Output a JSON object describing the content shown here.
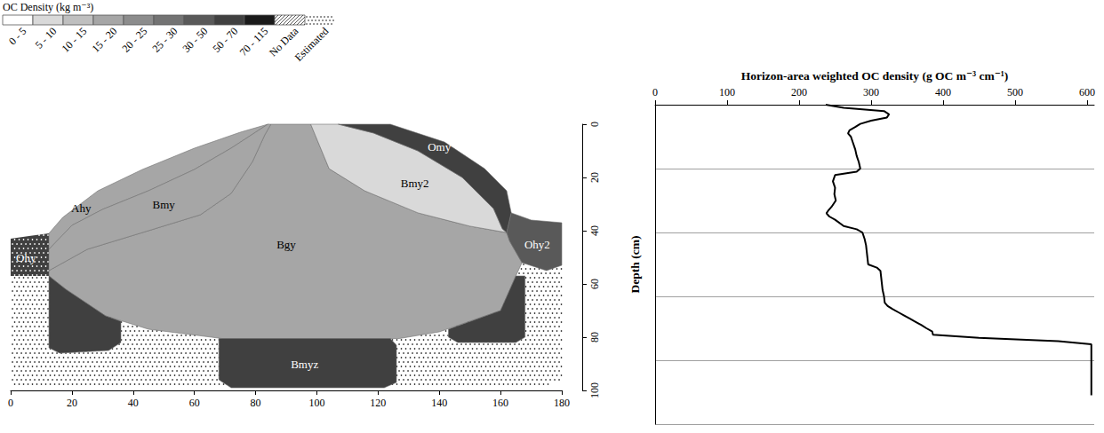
{
  "chart_data": {
    "type": "line",
    "x_title": "Horizon-area weighted OC density (g OC m⁻³ cm⁻¹)",
    "y_title": "Depth (cm)",
    "x": [
      237,
      262,
      318,
      325,
      322,
      300,
      285,
      278,
      270,
      268,
      272,
      275,
      278,
      280,
      283,
      285,
      280,
      250,
      247,
      250,
      249,
      251,
      245,
      241,
      238,
      242,
      250,
      262,
      280,
      288,
      291,
      293,
      294,
      295,
      296,
      308,
      313,
      314,
      315,
      316,
      318,
      319,
      323,
      330,
      338,
      346,
      354,
      362,
      370,
      377,
      385,
      386,
      450,
      560,
      606,
      606
    ],
    "y": [
      0,
      1,
      2,
      3,
      4,
      5,
      6,
      7,
      8,
      9,
      10,
      12,
      14,
      16,
      18,
      20,
      21,
      22,
      24,
      26,
      28,
      30,
      32,
      33,
      34,
      35,
      36,
      38,
      39,
      40,
      42,
      44,
      46,
      48,
      50,
      51,
      52,
      54,
      56,
      58,
      60,
      62,
      63,
      64,
      65,
      66,
      67,
      68,
      69,
      70,
      71,
      72,
      73,
      74,
      75,
      91
    ],
    "color": "#000000",
    "marker": "none",
    "line_style": "solid",
    "xlim": [
      0,
      610
    ],
    "xticks": [
      0,
      100,
      200,
      300,
      400,
      500,
      600
    ],
    "ylim": [
      0,
      100
    ],
    "yticks": [
      0,
      20,
      40,
      60,
      80,
      100
    ],
    "grid": true,
    "tick_labels": "x"
  },
  "profile": {
    "legend_title": "OC Density (kg m⁻³)",
    "classes": [
      {
        "label": "0 - 5",
        "color": "#ffffff"
      },
      {
        "label": "5 - 10",
        "color": "#d9d9d9"
      },
      {
        "label": "10 - 15",
        "color": "#bfbfbf"
      },
      {
        "label": "15 - 20",
        "color": "#a6a6a6"
      },
      {
        "label": "20 - 25",
        "color": "#8c8c8c"
      },
      {
        "label": "25 - 30",
        "color": "#737373"
      },
      {
        "label": "30 - 50",
        "color": "#595959"
      },
      {
        "label": "50 - 70",
        "color": "#404040"
      },
      {
        "label": "70 - 115",
        "color": "#1a1a1a"
      }
    ],
    "no_data_label": "No Data",
    "estimated_label": "Estimated",
    "xlim": [
      0,
      180
    ],
    "xticks": [
      0,
      20,
      40,
      60,
      80,
      100,
      120,
      140,
      160,
      180
    ],
    "ylim": [
      0,
      100
    ],
    "yticks": [
      0,
      20,
      40,
      60,
      80,
      100
    ],
    "horizons": [
      {
        "label": null,
        "class": null,
        "estimated": true
      },
      {
        "label": "Ohy",
        "class": "50 - 70",
        "estimated": true
      },
      {
        "label": "Bgy",
        "class": "15 - 20",
        "estimated": false
      },
      {
        "label": "Ahy",
        "class": "15 - 20",
        "estimated": false
      },
      {
        "label": "Bmy",
        "class": "15 - 20",
        "estimated": false
      },
      {
        "label": "Bmy2",
        "class": "5 - 10",
        "estimated": false
      },
      {
        "label": "Omy",
        "class": "50 - 70",
        "estimated": false
      },
      {
        "label": "Ohy2",
        "class": "30 - 50",
        "estimated": false
      },
      {
        "label": null,
        "class": "50 - 70",
        "estimated": false
      },
      {
        "label": null,
        "class": "50 - 70",
        "estimated": false
      },
      {
        "label": "Bmyz",
        "class": "50 - 70",
        "estimated": false
      }
    ]
  }
}
